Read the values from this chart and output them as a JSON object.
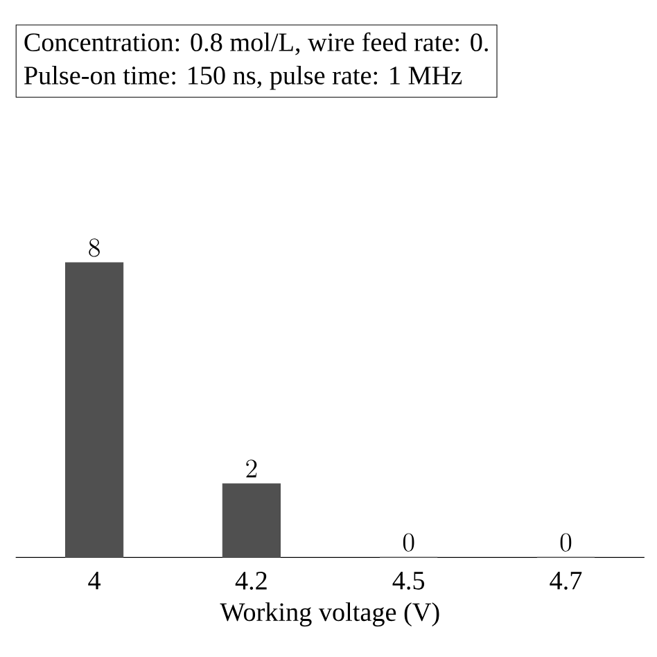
{
  "chart_data": {
    "type": "bar",
    "categories": [
      "4",
      "4.2",
      "4.5",
      "4.7"
    ],
    "values": [
      8,
      2,
      0,
      0
    ],
    "color": "#505050",
    "data_labels": true,
    "xlabel": "Working voltage (V)",
    "annotations": [
      "Concentration: 0.8 mol/L, wire feed rate: 0.",
      "Pulse-on time: 150 ns, pulse rate: 1 MHz"
    ]
  }
}
